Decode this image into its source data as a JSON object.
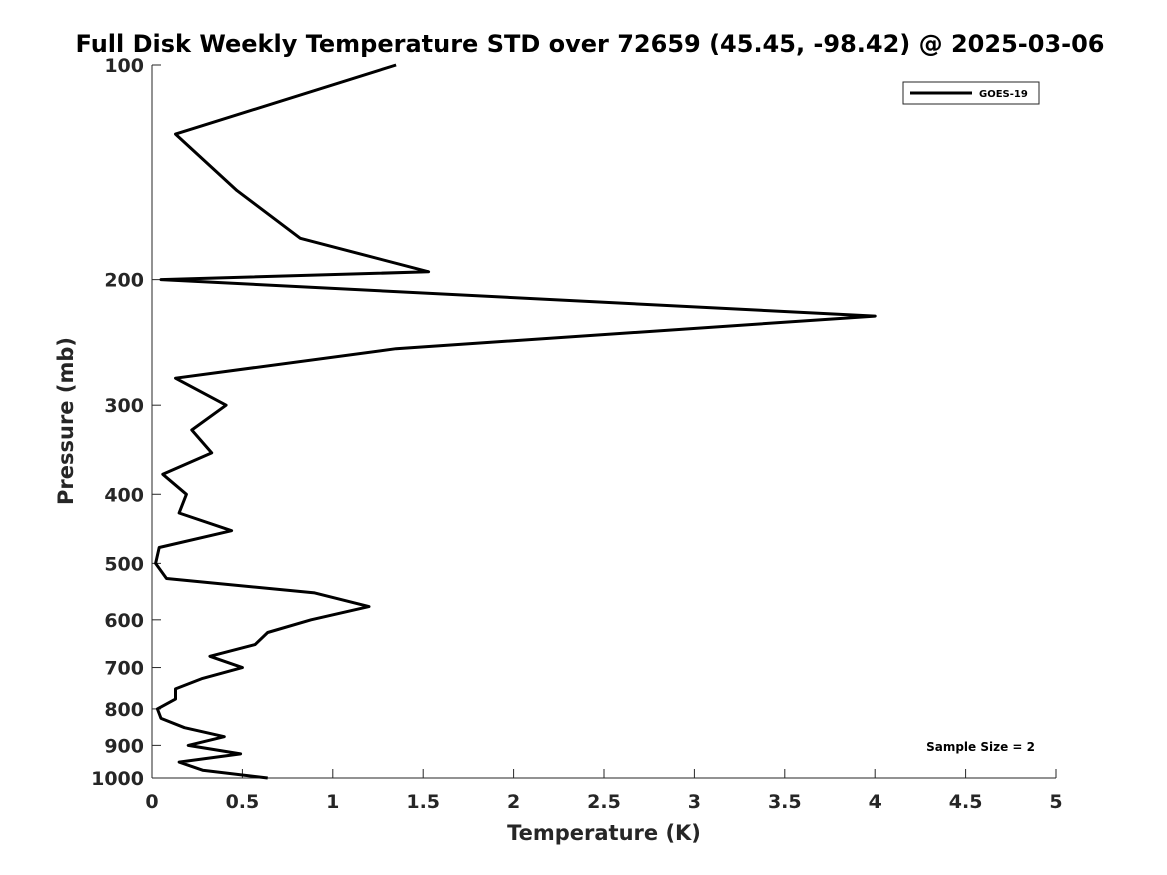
{
  "chart_data": {
    "type": "line",
    "title": "Full Disk Weekly Temperature STD over 72659 (45.45, -98.42) @ 2025-03-06",
    "xlabel": "Temperature (K)",
    "ylabel": "Pressure (mb)",
    "xlim": [
      0,
      5
    ],
    "ylim": [
      100,
      1000
    ],
    "y_scale": "log",
    "y_reversed": true,
    "x_ticks": [
      "0",
      "0.5",
      "1",
      "1.5",
      "2",
      "2.5",
      "3",
      "3.5",
      "4",
      "4.5",
      "5"
    ],
    "y_ticks": [
      "100",
      "200",
      "300",
      "400",
      "500",
      "600",
      "700",
      "800",
      "900",
      "1000"
    ],
    "legend_location": "top-right",
    "annotation": "Sample Size = 2",
    "series": [
      {
        "name": "GOES-19",
        "color": "#000000",
        "points": [
          {
            "t": 1.35,
            "p": 100
          },
          {
            "t": 0.13,
            "p": 125
          },
          {
            "t": 0.47,
            "p": 150
          },
          {
            "t": 0.82,
            "p": 175
          },
          {
            "t": 1.53,
            "p": 195
          },
          {
            "t": 0.05,
            "p": 200
          },
          {
            "t": 4.0,
            "p": 225
          },
          {
            "t": 1.35,
            "p": 250
          },
          {
            "t": 0.13,
            "p": 275
          },
          {
            "t": 0.41,
            "p": 300
          },
          {
            "t": 0.22,
            "p": 325
          },
          {
            "t": 0.33,
            "p": 350
          },
          {
            "t": 0.06,
            "p": 375
          },
          {
            "t": 0.19,
            "p": 400
          },
          {
            "t": 0.15,
            "p": 425
          },
          {
            "t": 0.44,
            "p": 450
          },
          {
            "t": 0.04,
            "p": 475
          },
          {
            "t": 0.02,
            "p": 500
          },
          {
            "t": 0.08,
            "p": 525
          },
          {
            "t": 0.9,
            "p": 550
          },
          {
            "t": 1.2,
            "p": 575
          },
          {
            "t": 0.88,
            "p": 600
          },
          {
            "t": 0.64,
            "p": 625
          },
          {
            "t": 0.57,
            "p": 650
          },
          {
            "t": 0.32,
            "p": 675
          },
          {
            "t": 0.5,
            "p": 700
          },
          {
            "t": 0.28,
            "p": 725
          },
          {
            "t": 0.13,
            "p": 750
          },
          {
            "t": 0.13,
            "p": 775
          },
          {
            "t": 0.03,
            "p": 800
          },
          {
            "t": 0.05,
            "p": 825
          },
          {
            "t": 0.18,
            "p": 850
          },
          {
            "t": 0.4,
            "p": 875
          },
          {
            "t": 0.2,
            "p": 900
          },
          {
            "t": 0.49,
            "p": 925
          },
          {
            "t": 0.15,
            "p": 950
          },
          {
            "t": 0.28,
            "p": 975
          },
          {
            "t": 0.64,
            "p": 1000
          }
        ]
      }
    ]
  }
}
